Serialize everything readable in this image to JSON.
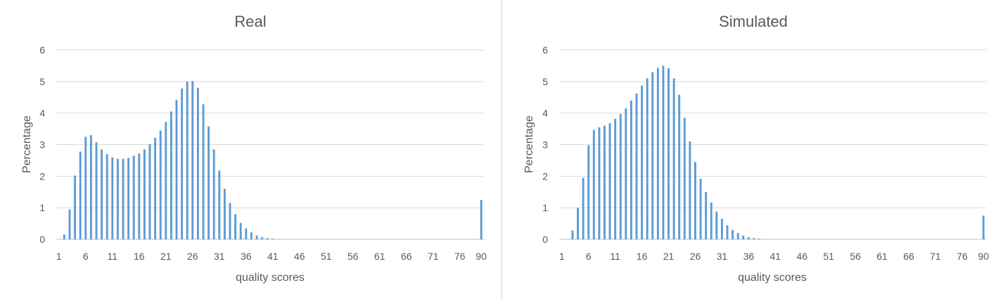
{
  "chart_data": [
    {
      "type": "bar",
      "title": "Real",
      "xlabel": "quality scores",
      "ylabel": "Percentage",
      "ylim": [
        0,
        6
      ],
      "yticks": [
        "0",
        "1",
        "2",
        "3",
        "4",
        "5",
        "6"
      ],
      "xtick_labels": [
        "1",
        "6",
        "11",
        "16",
        "21",
        "26",
        "31",
        "36",
        "41",
        "46",
        "51",
        "56",
        "61",
        "66",
        "71",
        "76",
        "90"
      ],
      "grid": true,
      "color": "#5b9bd5",
      "categories": [
        1,
        2,
        3,
        4,
        5,
        6,
        7,
        8,
        9,
        10,
        11,
        12,
        13,
        14,
        15,
        16,
        17,
        18,
        19,
        20,
        21,
        22,
        23,
        24,
        25,
        26,
        27,
        28,
        29,
        30,
        31,
        32,
        33,
        34,
        35,
        36,
        37,
        38,
        39,
        40,
        41,
        42,
        43,
        44,
        45,
        46,
        47,
        48,
        49,
        50,
        51,
        52,
        53,
        54,
        55,
        56,
        57,
        58,
        59,
        60,
        61,
        62,
        63,
        64,
        65,
        66,
        67,
        68,
        69,
        70,
        71,
        72,
        73,
        74,
        75,
        76,
        77,
        78,
        79,
        90
      ],
      "values": [
        0,
        0.15,
        0.95,
        2.02,
        2.78,
        3.25,
        3.3,
        3.07,
        2.85,
        2.7,
        2.6,
        2.55,
        2.55,
        2.58,
        2.65,
        2.72,
        2.85,
        3.02,
        3.22,
        3.45,
        3.72,
        4.05,
        4.42,
        4.78,
        5.0,
        5.02,
        4.8,
        4.28,
        3.58,
        2.85,
        2.18,
        1.6,
        1.15,
        0.8,
        0.52,
        0.35,
        0.22,
        0.12,
        0.07,
        0.04,
        0.02,
        0.01,
        0,
        0,
        0,
        0,
        0,
        0,
        0,
        0,
        0,
        0,
        0,
        0,
        0,
        0,
        0,
        0,
        0,
        0,
        0,
        0,
        0,
        0,
        0,
        0,
        0,
        0,
        0,
        0,
        0,
        0,
        0,
        0,
        0,
        0,
        0,
        0,
        0,
        1.25
      ]
    },
    {
      "type": "bar",
      "title": "Simulated",
      "xlabel": "quality scores",
      "ylabel": "Percentage",
      "ylim": [
        0,
        6
      ],
      "yticks": [
        "0",
        "1",
        "2",
        "3",
        "4",
        "5",
        "6"
      ],
      "xtick_labels": [
        "1",
        "6",
        "11",
        "16",
        "21",
        "26",
        "31",
        "36",
        "41",
        "46",
        "51",
        "56",
        "61",
        "66",
        "71",
        "76",
        "90"
      ],
      "grid": true,
      "color": "#5b9bd5",
      "categories": [
        1,
        2,
        3,
        4,
        5,
        6,
        7,
        8,
        9,
        10,
        11,
        12,
        13,
        14,
        15,
        16,
        17,
        18,
        19,
        20,
        21,
        22,
        23,
        24,
        25,
        26,
        27,
        28,
        29,
        30,
        31,
        32,
        33,
        34,
        35,
        36,
        37,
        38,
        39,
        40,
        41,
        42,
        43,
        44,
        45,
        46,
        47,
        48,
        49,
        50,
        51,
        52,
        53,
        54,
        55,
        56,
        57,
        58,
        59,
        60,
        61,
        62,
        63,
        64,
        65,
        66,
        67,
        68,
        69,
        70,
        71,
        72,
        73,
        74,
        75,
        76,
        77,
        78,
        79,
        90
      ],
      "values": [
        0,
        0,
        0.28,
        1.0,
        1.95,
        2.98,
        3.47,
        3.55,
        3.6,
        3.68,
        3.82,
        3.97,
        4.15,
        4.4,
        4.62,
        4.87,
        5.1,
        5.3,
        5.43,
        5.5,
        5.42,
        5.1,
        4.58,
        3.85,
        3.1,
        2.45,
        1.92,
        1.5,
        1.17,
        0.88,
        0.65,
        0.45,
        0.3,
        0.2,
        0.12,
        0.07,
        0.04,
        0.02,
        0.01,
        0,
        0,
        0,
        0,
        0,
        0,
        0,
        0,
        0,
        0,
        0,
        0,
        0,
        0,
        0,
        0,
        0,
        0,
        0,
        0,
        0,
        0,
        0,
        0,
        0,
        0,
        0,
        0,
        0,
        0,
        0,
        0,
        0,
        0,
        0,
        0,
        0,
        0,
        0,
        0,
        0.75
      ]
    }
  ]
}
